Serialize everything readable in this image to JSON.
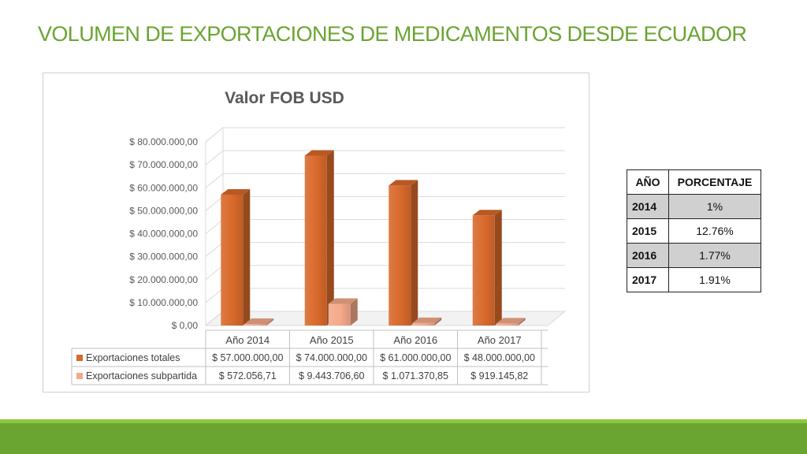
{
  "slide": {
    "title": "VOLUMEN DE EXPORTACIONES DE MEDICAMENTOS DESDE ECUADOR"
  },
  "chart_data": {
    "type": "bar",
    "title": "Valor FOB USD",
    "categories": [
      "Año 2014",
      "Año 2015",
      "Año 2016",
      "Año 2017"
    ],
    "series": [
      {
        "name": "Exportaciones totales",
        "values": [
          57000000,
          74000000,
          61000000,
          48000000
        ],
        "labels": [
          "$ 57.000.000,00",
          "$ 74.000.000,00",
          "$ 61.000.000,00",
          "$ 48.000.000,00"
        ],
        "color": "#d8692b"
      },
      {
        "name": "Exportaciones subpartida",
        "values": [
          572056.71,
          9443706.6,
          1071370.85,
          919145.82
        ],
        "labels": [
          "$ 572.056,71",
          "$ 9.443.706,60",
          "$ 1.071.370,85",
          "$ 919.145,82"
        ],
        "color": "#f4a98a"
      }
    ],
    "ylim": [
      0,
      80000000
    ],
    "yticks": [
      0,
      10000000,
      20000000,
      30000000,
      40000000,
      50000000,
      60000000,
      70000000,
      80000000
    ],
    "ytick_labels": [
      "$ 0,00",
      "$ 10.000.000,00",
      "$ 20.000.000,00",
      "$ 30.000.000,00",
      "$ 40.000.000,00",
      "$ 50.000.000,00",
      "$ 60.000.000,00",
      "$ 70.000.000,00",
      "$ 80.000.000,00"
    ],
    "grid": true,
    "legend": "data-table"
  },
  "pct_table": {
    "headers": [
      "AÑO",
      "PORCENTAJE"
    ],
    "rows": [
      {
        "year": "2014",
        "value": "1%"
      },
      {
        "year": "2015",
        "value": "12.76%"
      },
      {
        "year": "2016",
        "value": "1.77%"
      },
      {
        "year": "2017",
        "value": "1.91%"
      }
    ]
  }
}
